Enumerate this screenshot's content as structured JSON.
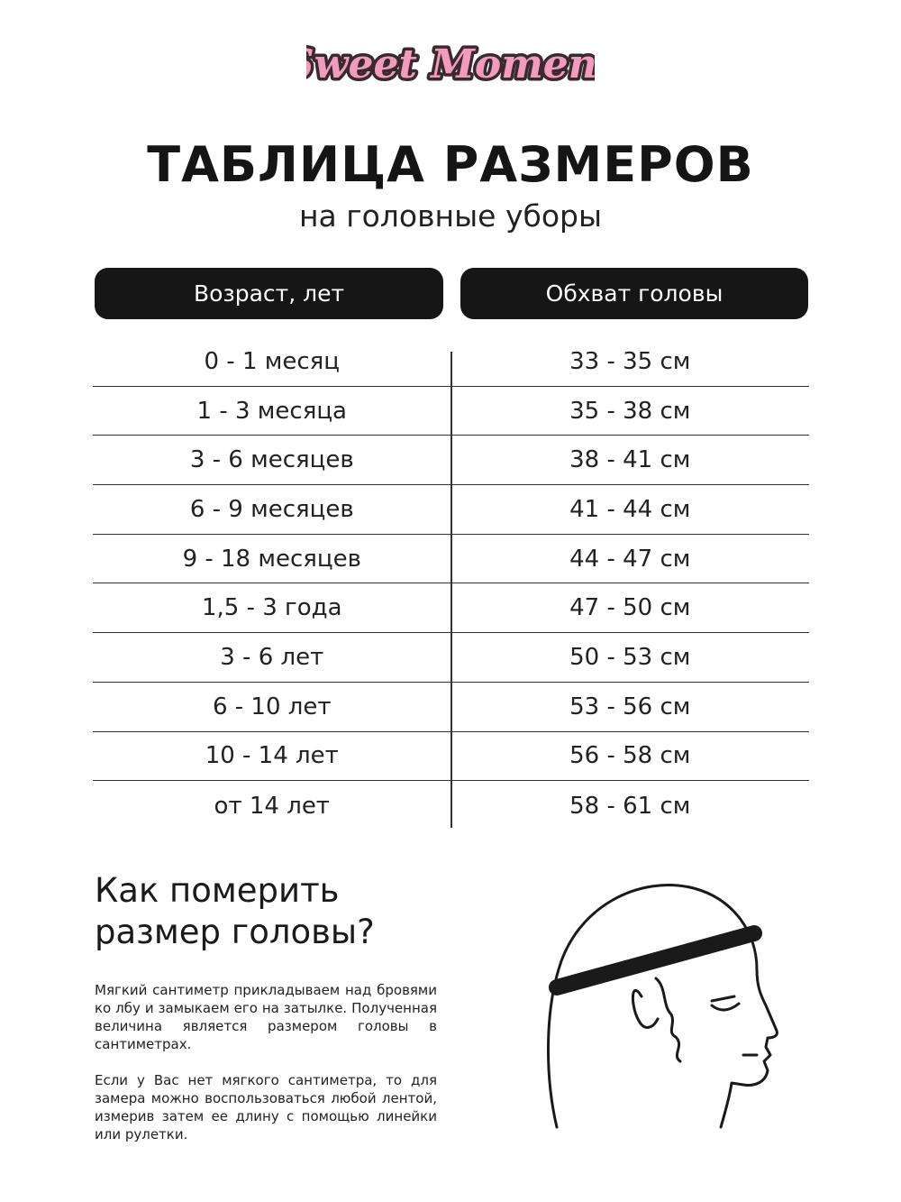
{
  "brand": {
    "logo_text": "Sweet Moment",
    "colors": {
      "pink": "#f29bbd",
      "outline": "#3a2a2e"
    }
  },
  "title": "ТАБЛИЦА РАЗМЕРОВ",
  "subtitle": "на головные уборы",
  "table": {
    "headers": [
      "Возраст, лет",
      "Обхват головы"
    ],
    "rows": [
      [
        "0 - 1 месяц",
        "33 - 35 см"
      ],
      [
        "1 - 3 месяца",
        "35 - 38 см"
      ],
      [
        "3 - 6 месяцев",
        "38 - 41 см"
      ],
      [
        "6 - 9 месяцев",
        "41 - 44 см"
      ],
      [
        "9 - 18 месяцев",
        "44 - 47 см"
      ],
      [
        "1,5 - 3 года",
        "47 - 50 см"
      ],
      [
        "3 - 6 лет",
        "50 - 53 см"
      ],
      [
        "6 - 10 лет",
        "53 - 56 см"
      ],
      [
        "10 - 14 лет",
        "56 - 58 см"
      ],
      [
        "от 14 лет",
        "58 - 61 см"
      ]
    ]
  },
  "howto": {
    "heading_line1": "Как померить",
    "heading_line2": "размер головы?",
    "paragraph1": "Мягкий сантиметр прикладываем над бровями ко лбу и замыкаем его на затылке. Полученная величина является размером головы в сантиметрах.",
    "paragraph2": "Если у Вас нет мягкого сантиметра, то для замера можно воспользоваться любой лентой, измерив затем ее длину с помощью линейки или рулетки."
  }
}
